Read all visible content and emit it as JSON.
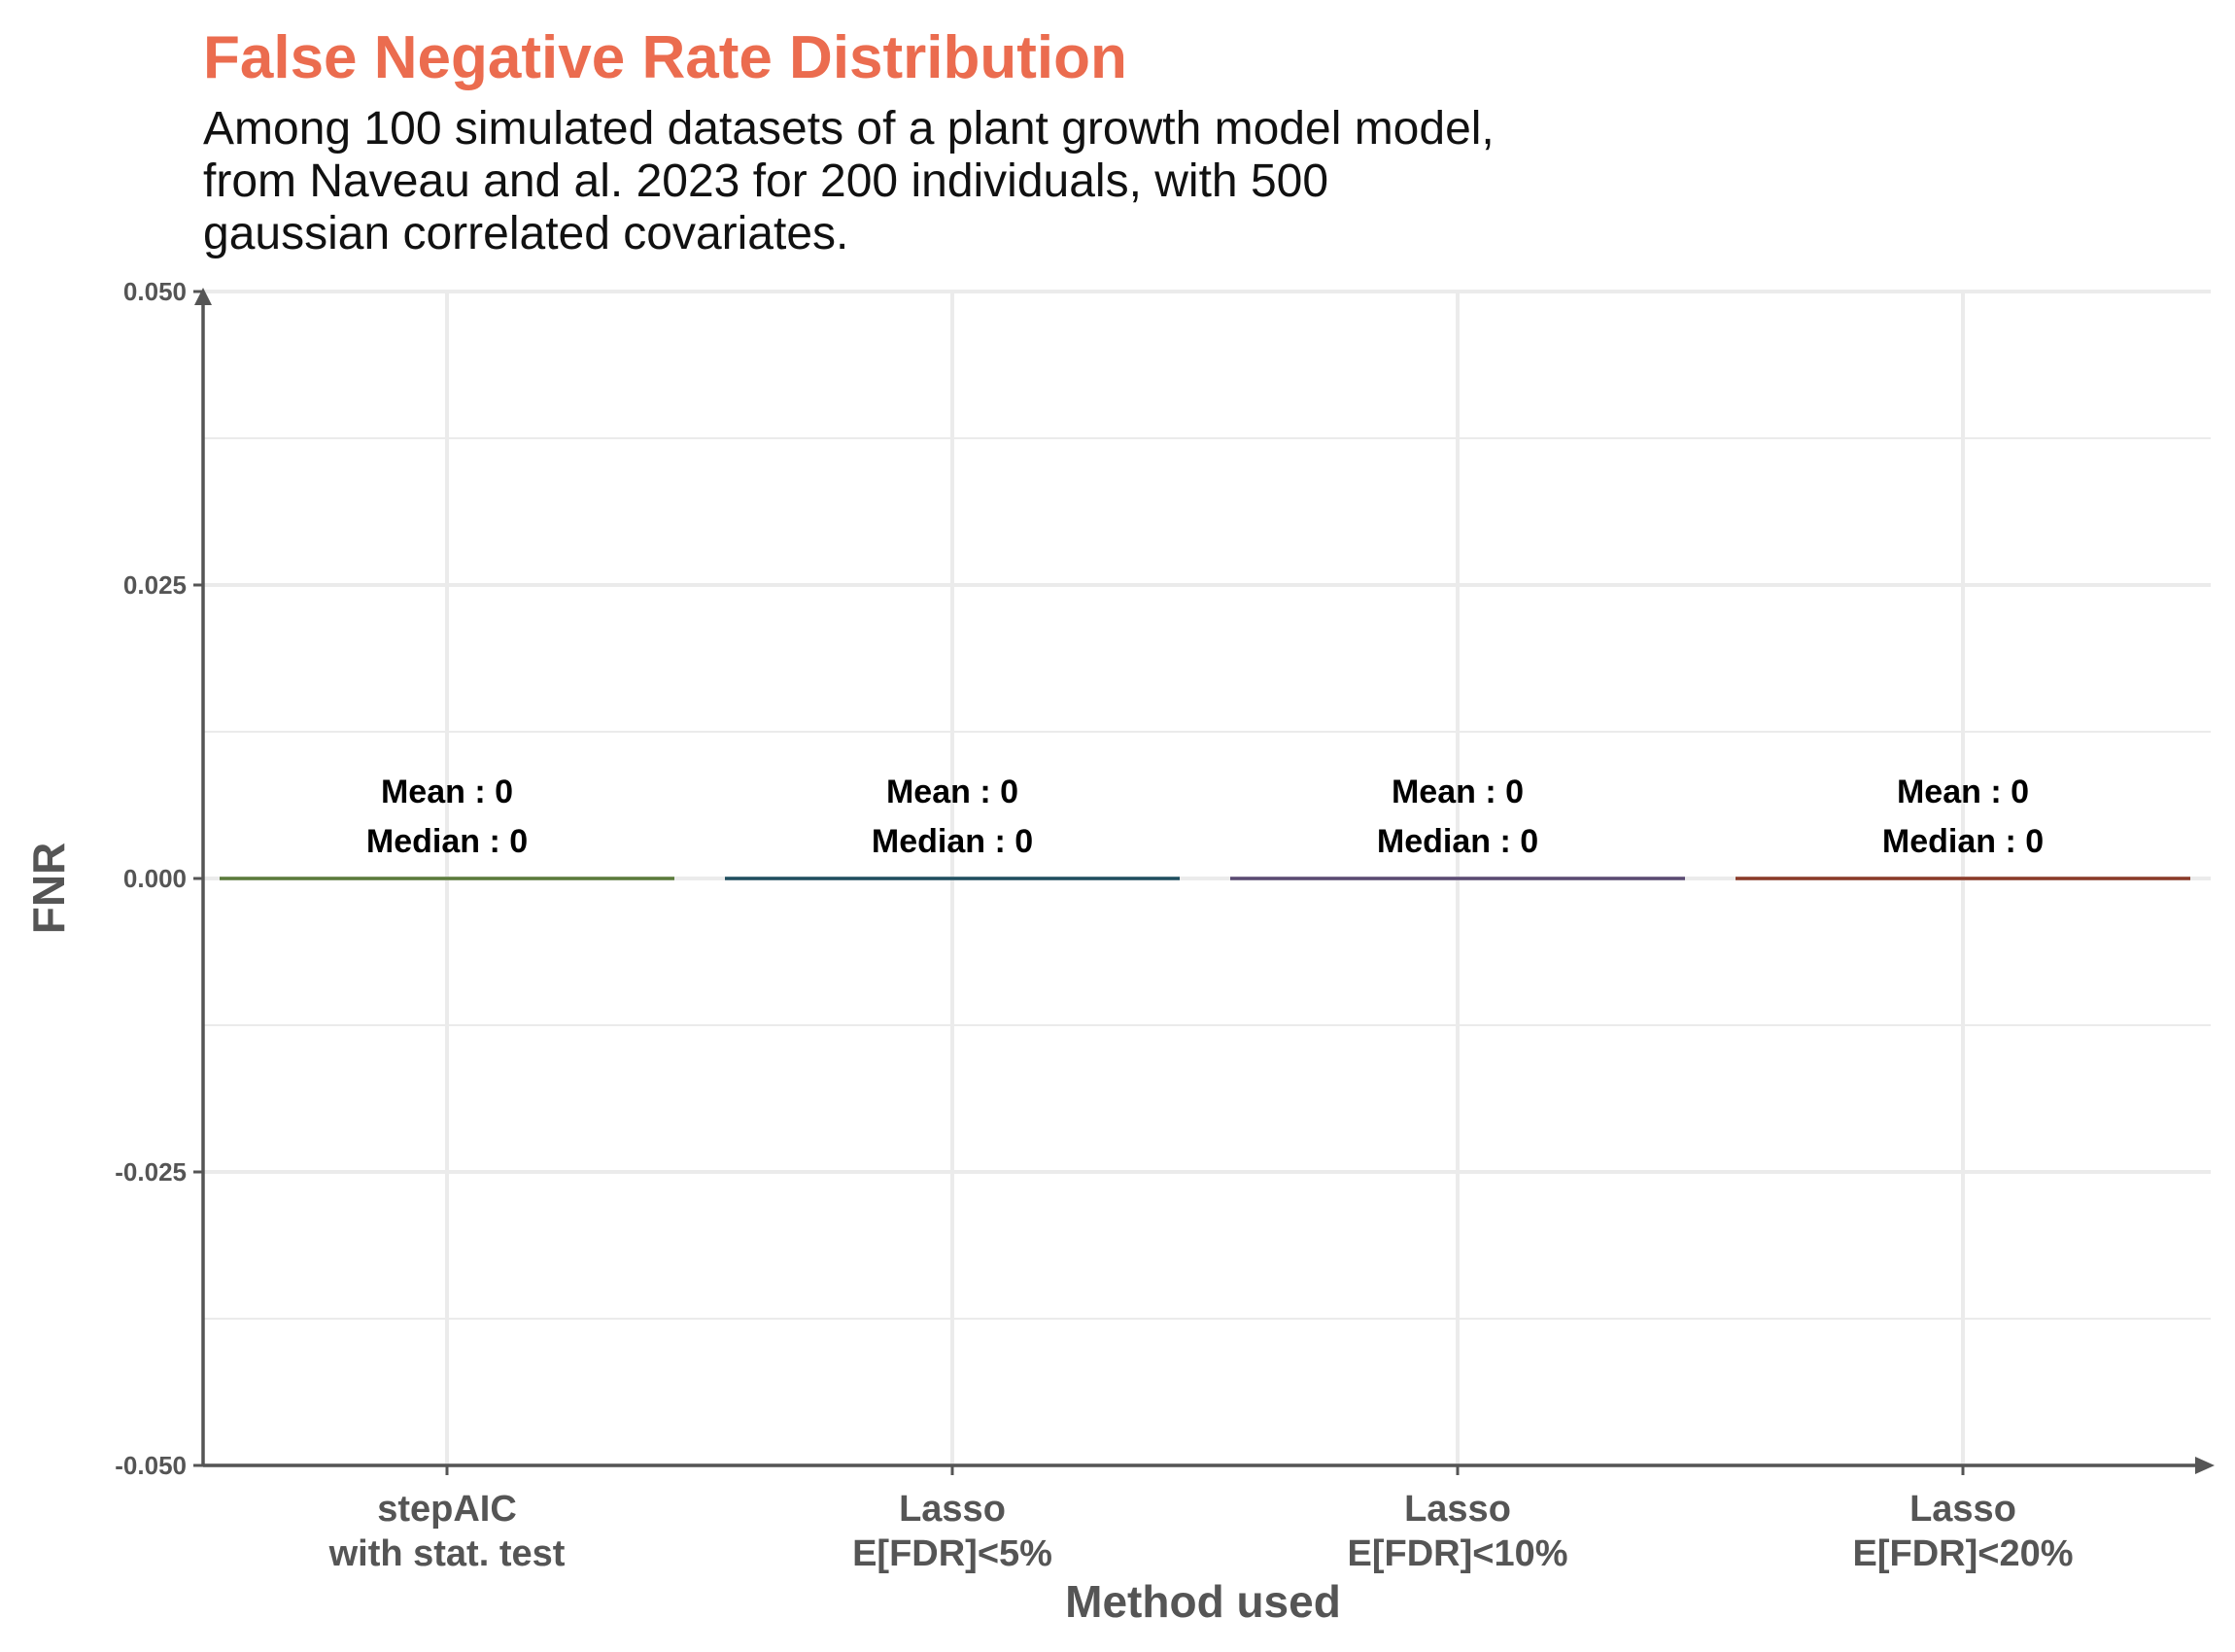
{
  "chart_data": {
    "type": "boxplot",
    "title": "False Negative Rate Distribution",
    "subtitle_lines": [
      "Among 100 simulated datasets of a plant growth model model,",
      "from Naveau and al. 2023 for 200 individuals, with 500",
      "gaussian correlated covariates."
    ],
    "xlabel": "Method used",
    "ylabel": "FNR",
    "ylim": [
      -0.05,
      0.05
    ],
    "y_ticks": [
      "0.050",
      "0.025",
      "0.000",
      "-0.025",
      "-0.050"
    ],
    "y_tick_values": [
      0.05,
      0.025,
      0,
      -0.025,
      -0.05
    ],
    "y_minor_values": [
      0.0375,
      0.0125,
      -0.0125,
      -0.0375
    ],
    "grid": true,
    "categories": [
      {
        "lines": [
          "stepAIC",
          "with stat. test"
        ],
        "mean_label": "Mean : 0",
        "median_label": "Median : 0",
        "mean": 0,
        "median": 0,
        "color": "#5B7B3B"
      },
      {
        "lines": [
          "Lasso",
          "E[FDR]<5%"
        ],
        "mean_label": "Mean : 0",
        "median_label": "Median : 0",
        "mean": 0,
        "median": 0,
        "color": "#1F4E5F"
      },
      {
        "lines": [
          "Lasso",
          "E[FDR]<10%"
        ],
        "mean_label": "Mean : 0",
        "median_label": "Median : 0",
        "mean": 0,
        "median": 0,
        "color": "#5A4A72"
      },
      {
        "lines": [
          "Lasso",
          "E[FDR]<20%"
        ],
        "mean_label": "Mean : 0",
        "median_label": "Median : 0",
        "mean": 0,
        "median": 0,
        "color": "#8A3A28"
      }
    ],
    "colors": {
      "title": "#EB6C4F",
      "axis": "#555555",
      "grid": "#EBEBEB"
    }
  }
}
